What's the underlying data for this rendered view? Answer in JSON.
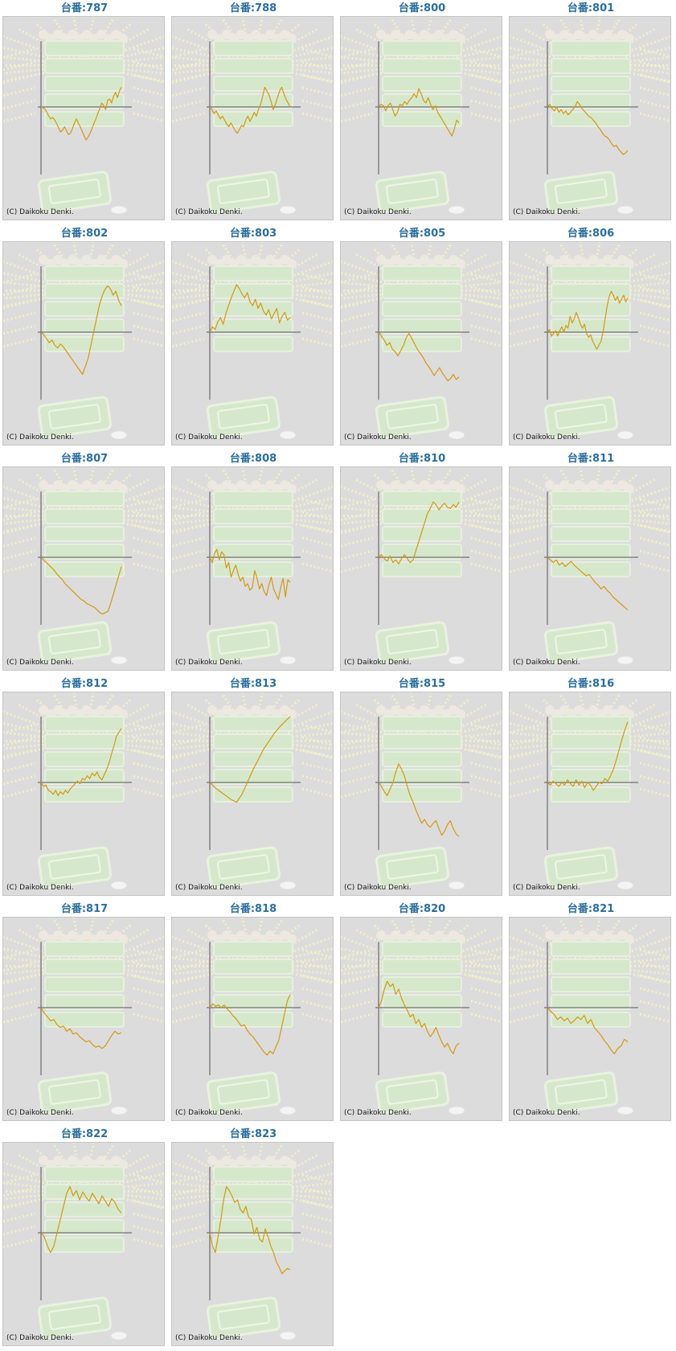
{
  "copyright": "(C) Daikoku Denki.",
  "colors": {
    "title": "#2a6e9e",
    "line": "#d29a0e",
    "axis": "#555555",
    "background": "#dcdcdc"
  },
  "machines": [
    {
      "label": "台番:787",
      "chart_data": {
        "type": "line",
        "values": [
          0,
          -1,
          -3,
          -8,
          -14,
          -18,
          -16,
          -20,
          -25,
          -32,
          -38,
          -35,
          -30,
          -36,
          -42,
          -40,
          -33,
          -25,
          -18,
          -24,
          -30,
          -37,
          -44,
          -50,
          -46,
          -40,
          -33,
          -25,
          -18,
          -10,
          -2,
          6,
          2,
          -4,
          10,
          12,
          6,
          16,
          22,
          14,
          24,
          30
        ]
      }
    },
    {
      "label": "台番:788",
      "chart_data": {
        "type": "line",
        "values": [
          0,
          -4,
          -10,
          -6,
          -12,
          -18,
          -14,
          -20,
          -26,
          -30,
          -24,
          -30,
          -36,
          -40,
          -34,
          -28,
          -30,
          -20,
          -14,
          -22,
          -16,
          -8,
          -14,
          -4,
          4,
          16,
          30,
          24,
          18,
          8,
          -4,
          4,
          14,
          24,
          30,
          20,
          12,
          6,
          0
        ]
      }
    },
    {
      "label": "台番:800",
      "chart_data": {
        "type": "line",
        "values": [
          0,
          4,
          2,
          -6,
          2,
          6,
          -4,
          -14,
          -8,
          4,
          2,
          8,
          4,
          10,
          14,
          20,
          14,
          28,
          20,
          10,
          6,
          14,
          4,
          -4,
          2,
          -8,
          -14,
          -20,
          -26,
          -32,
          -38,
          -44,
          -34,
          -20,
          -24
        ]
      }
    },
    {
      "label": "台番:801",
      "chart_data": {
        "type": "line",
        "values": [
          0,
          4,
          -2,
          -6,
          0,
          -8,
          -4,
          -10,
          -6,
          -12,
          -8,
          -4,
          0,
          8,
          4,
          -2,
          -6,
          -10,
          -14,
          -16,
          -20,
          -24,
          -30,
          -34,
          -40,
          -44,
          -46,
          -50,
          -56,
          -60,
          -58,
          -64,
          -68,
          -72,
          -70,
          -66
        ]
      }
    },
    {
      "label": "台番:802",
      "chart_data": {
        "type": "line",
        "values": [
          0,
          -4,
          -10,
          -16,
          -12,
          -20,
          -24,
          -18,
          -22,
          -28,
          -34,
          -40,
          -46,
          -52,
          -58,
          -64,
          -52,
          -40,
          -20,
          0,
          20,
          40,
          54,
          64,
          70,
          66,
          56,
          62,
          48,
          40
        ]
      }
    },
    {
      "label": "台番:803",
      "chart_data": {
        "type": "line",
        "values": [
          0,
          8,
          4,
          16,
          22,
          12,
          28,
          40,
          52,
          62,
          72,
          66,
          58,
          52,
          60,
          46,
          40,
          50,
          36,
          44,
          32,
          26,
          34,
          20,
          28,
          36,
          14,
          24,
          30,
          18,
          22
        ]
      }
    },
    {
      "label": "台番:805",
      "chart_data": {
        "type": "line",
        "values": [
          0,
          -6,
          -12,
          -20,
          -16,
          -26,
          -30,
          -36,
          -28,
          -20,
          -8,
          -2,
          -10,
          -18,
          -26,
          -32,
          -38,
          -46,
          -52,
          -58,
          -66,
          -60,
          -54,
          -62,
          -68,
          -74,
          -70,
          -64,
          -72,
          -68
        ]
      }
    },
    {
      "label": "台番:806",
      "chart_data": {
        "type": "line",
        "values": [
          0,
          4,
          -6,
          -2,
          2,
          -6,
          2,
          8,
          0,
          10,
          6,
          24,
          14,
          20,
          30,
          22,
          12,
          6,
          12,
          -2,
          -8,
          -4,
          -14,
          -20,
          -26,
          -20,
          -14,
          0,
          20,
          40,
          54,
          62,
          56,
          48,
          54,
          44,
          50,
          56,
          46,
          52
        ]
      }
    },
    {
      "label": "台番:807",
      "chart_data": {
        "type": "line",
        "values": [
          0,
          -4,
          -8,
          -12,
          -16,
          -20,
          -26,
          -30,
          -34,
          -40,
          -44,
          -48,
          -52,
          -56,
          -60,
          -64,
          -66,
          -70,
          -72,
          -74,
          -76,
          -80,
          -84,
          -86,
          -84,
          -82,
          -70,
          -56,
          -42,
          -28,
          -14
        ]
      }
    },
    {
      "label": "台番:808",
      "chart_data": {
        "type": "line",
        "values": [
          0,
          -8,
          6,
          12,
          -4,
          8,
          4,
          -16,
          -8,
          -30,
          -20,
          -12,
          -26,
          -36,
          -30,
          -44,
          -40,
          -50,
          -46,
          -20,
          -32,
          -48,
          -40,
          -52,
          -58,
          -42,
          -30,
          -48,
          -56,
          -64,
          -46,
          -32,
          -60,
          -34,
          -38
        ]
      }
    },
    {
      "label": "台番:810",
      "chart_data": {
        "type": "line",
        "values": [
          0,
          4,
          -2,
          -6,
          2,
          -8,
          -4,
          -10,
          -2,
          4,
          -2,
          -8,
          -4,
          10,
          24,
          38,
          52,
          66,
          74,
          84,
          80,
          72,
          78,
          82,
          76,
          74,
          80,
          76,
          84
        ]
      }
    },
    {
      "label": "台番:811",
      "chart_data": {
        "type": "line",
        "values": [
          0,
          -4,
          -8,
          -4,
          -12,
          -8,
          -14,
          -10,
          -6,
          -12,
          -16,
          -20,
          -24,
          -28,
          -26,
          -32,
          -38,
          -42,
          -48,
          -44,
          -50,
          -54,
          -60,
          -64,
          -68,
          -72,
          -76,
          -80
        ]
      }
    },
    {
      "label": "台番:812",
      "chart_data": {
        "type": "line",
        "values": [
          0,
          -6,
          -4,
          -12,
          -14,
          -18,
          -12,
          -20,
          -14,
          -18,
          -12,
          -16,
          -10,
          -6,
          -2,
          2,
          -2,
          6,
          4,
          10,
          6,
          14,
          10,
          16,
          8,
          4,
          12,
          20,
          30,
          44,
          56,
          70,
          76,
          82
        ]
      }
    },
    {
      "label": "台番:813",
      "chart_data": {
        "type": "line",
        "values": [
          0,
          -8,
          -14,
          -20,
          -26,
          -30,
          -18,
          0,
          18,
          34,
          50,
          62,
          74,
          84,
          92,
          100
        ]
      }
    },
    {
      "label": "台番:815",
      "chart_data": {
        "type": "line",
        "values": [
          0,
          -6,
          -14,
          -20,
          -10,
          0,
          16,
          28,
          20,
          10,
          -6,
          -20,
          -30,
          -42,
          -52,
          -62,
          -56,
          -64,
          -68,
          -62,
          -58,
          -70,
          -80,
          -74,
          -64,
          -58,
          -70,
          -78,
          -82
        ]
      }
    },
    {
      "label": "台番:816",
      "chart_data": {
        "type": "line",
        "values": [
          0,
          -4,
          2,
          -2,
          -6,
          0,
          -4,
          4,
          -2,
          -6,
          4,
          -4,
          2,
          -8,
          0,
          -4,
          -12,
          -6,
          0,
          -2,
          6,
          2,
          10,
          20,
          34,
          50,
          66,
          80,
          92
        ]
      }
    },
    {
      "label": "台番:817",
      "chart_data": {
        "type": "line",
        "values": [
          0,
          -8,
          -14,
          -20,
          -18,
          -26,
          -30,
          -28,
          -36,
          -32,
          -40,
          -38,
          -44,
          -48,
          -52,
          -50,
          -56,
          -60,
          -58,
          -62,
          -58,
          -50,
          -42,
          -36,
          -40,
          -38
        ]
      }
    },
    {
      "label": "台番:818",
      "chart_data": {
        "type": "line",
        "values": [
          0,
          6,
          2,
          4,
          0,
          4,
          -2,
          -6,
          -12,
          -16,
          -22,
          -28,
          -26,
          -34,
          -40,
          -44,
          -50,
          -56,
          -62,
          -68,
          -72,
          -66,
          -70,
          -60,
          -50,
          -30,
          -10,
          10,
          20
        ]
      }
    },
    {
      "label": "台番:820",
      "chart_data": {
        "type": "line",
        "values": [
          0,
          10,
          28,
          40,
          32,
          36,
          20,
          28,
          14,
          4,
          -4,
          -14,
          -10,
          -24,
          -18,
          -30,
          -24,
          -36,
          -44,
          -38,
          -30,
          -42,
          -52,
          -60,
          -54,
          -64,
          -70,
          -58,
          -54
        ]
      }
    },
    {
      "label": "台番:821",
      "chart_data": {
        "type": "line",
        "values": [
          0,
          -6,
          -10,
          -18,
          -14,
          -20,
          -16,
          -24,
          -20,
          -14,
          -18,
          -12,
          -24,
          -18,
          -30,
          -36,
          -42,
          -50,
          -56,
          -64,
          -70,
          -62,
          -58,
          -48,
          -52
        ]
      }
    },
    {
      "label": "台番:822",
      "chart_data": {
        "type": "line",
        "values": [
          0,
          -6,
          -20,
          -30,
          -20,
          0,
          20,
          40,
          60,
          70,
          56,
          64,
          50,
          62,
          54,
          48,
          60,
          52,
          44,
          56,
          48,
          40,
          52,
          46,
          36,
          30
        ]
      }
    },
    {
      "label": "台番:823",
      "chart_data": {
        "type": "line",
        "values": [
          0,
          -20,
          -30,
          -6,
          20,
          50,
          70,
          64,
          56,
          46,
          50,
          36,
          30,
          40,
          24,
          20,
          -2,
          8,
          -10,
          -14,
          6,
          -6,
          -20,
          -30,
          -44,
          -52,
          -62,
          -58,
          -54,
          -56
        ]
      }
    }
  ]
}
